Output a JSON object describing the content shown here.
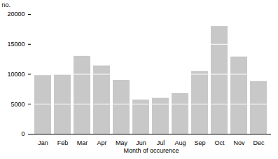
{
  "chart_data": {
    "type": "bar",
    "categories": [
      "Jan",
      "Feb",
      "Mar",
      "Apr",
      "May",
      "Jun",
      "Jul",
      "Aug",
      "Sep",
      "Oct",
      "Nov",
      "Dec"
    ],
    "values": [
      9800,
      9900,
      13000,
      11400,
      9000,
      5700,
      6000,
      6800,
      10500,
      18000,
      12900,
      8800
    ],
    "color": "#c8c8c8",
    "ylabel": "no.",
    "xlabel": "Month of occurence",
    "ylim": [
      0,
      20000
    ],
    "yticks": [
      0,
      5000,
      10000,
      15000,
      20000
    ],
    "grid": true
  }
}
